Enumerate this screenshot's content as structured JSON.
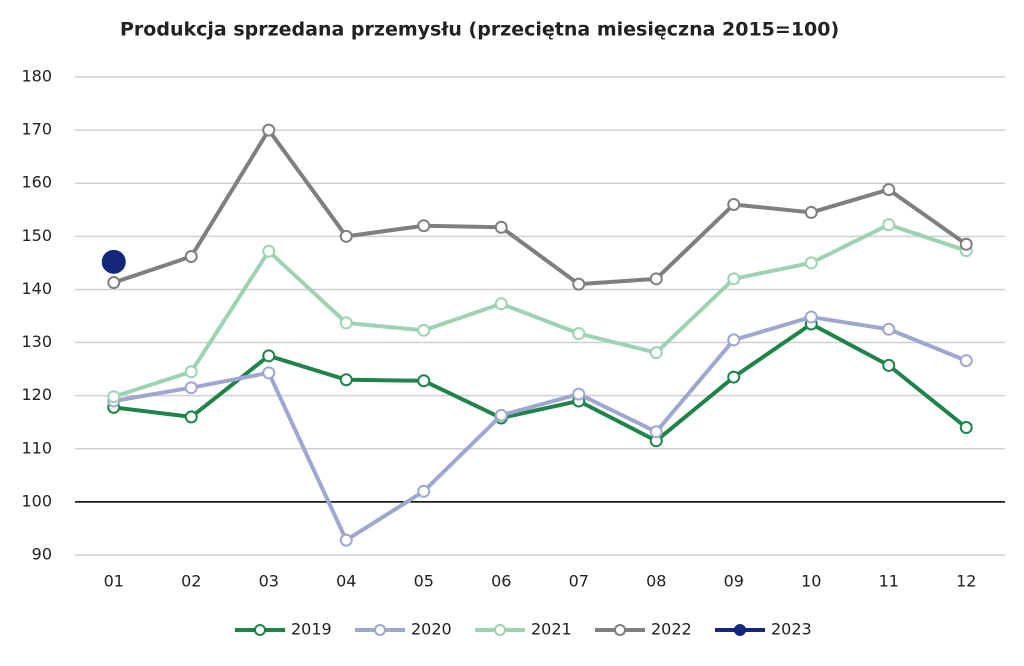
{
  "chart_data": {
    "type": "line",
    "title": "Produkcja sprzedana przemysłu (przeciętna miesięczna 2015=100)",
    "categories": [
      "01",
      "02",
      "03",
      "04",
      "05",
      "06",
      "07",
      "08",
      "09",
      "10",
      "11",
      "12"
    ],
    "series": [
      {
        "name": "2019",
        "color": "#1e8449",
        "values": [
          117.8,
          116,
          127.5,
          123,
          122.8,
          115.8,
          119,
          111.5,
          123.5,
          133.5,
          125.7,
          114
        ]
      },
      {
        "name": "2020",
        "color": "#9ea7d0",
        "values": [
          119,
          121.5,
          124.3,
          92.8,
          102,
          116.3,
          120.3,
          113.2,
          130.5,
          134.8,
          132.5,
          126.6
        ]
      },
      {
        "name": "2021",
        "color": "#9dd3b2",
        "values": [
          119.8,
          124.5,
          147.2,
          133.7,
          132.3,
          137.3,
          131.7,
          128.1,
          142,
          145,
          152.2,
          147.3
        ]
      },
      {
        "name": "2022",
        "color": "#7f7f7f",
        "values": [
          141.3,
          146.2,
          170,
          150,
          152,
          151.7,
          141,
          142,
          156,
          154.5,
          158.8,
          148.5
        ]
      },
      {
        "name": "2023",
        "color": "#13287a",
        "values": [
          145.2,
          null,
          null,
          null,
          null,
          null,
          null,
          null,
          null,
          null,
          null,
          null
        ]
      }
    ],
    "ylim": [
      90,
      180
    ],
    "yticks": [
      90,
      100,
      110,
      120,
      130,
      140,
      150,
      160,
      170,
      180
    ],
    "grid": true,
    "reference_line": 100,
    "legend": "bottom"
  }
}
